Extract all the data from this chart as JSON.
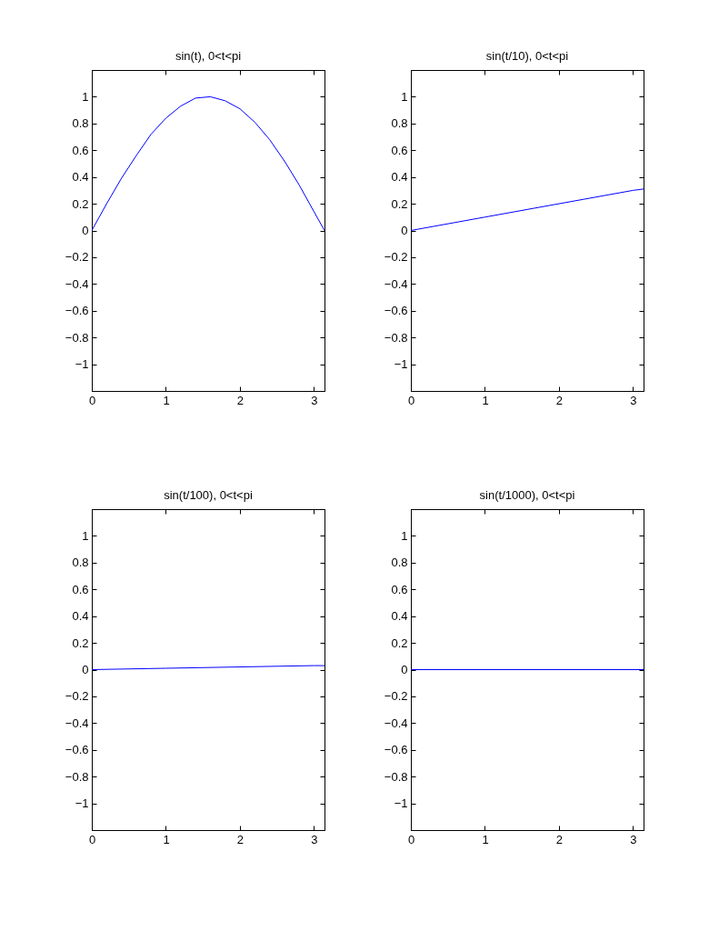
{
  "chart_data": [
    {
      "type": "line",
      "title": "sin(t), 0<t<pi",
      "x": [
        0,
        0.2,
        0.4,
        0.6,
        0.8,
        1.0,
        1.2,
        1.4,
        1.6,
        1.8,
        2.0,
        2.2,
        2.4,
        2.6,
        2.8,
        3.0,
        3.1416
      ],
      "series": [
        {
          "color": "#0000ff",
          "values": [
            0,
            0.2,
            0.39,
            0.56,
            0.72,
            0.84,
            0.93,
            0.99,
            1.0,
            0.97,
            0.91,
            0.81,
            0.68,
            0.52,
            0.34,
            0.14,
            0
          ]
        }
      ],
      "xlim": [
        0,
        3.1416
      ],
      "ylim": [
        -1.2,
        1.2
      ],
      "xticks": [
        0,
        1,
        2,
        3
      ],
      "yticks": [
        -1,
        -0.8,
        -0.6,
        -0.4,
        -0.2,
        0,
        0.2,
        0.4,
        0.6,
        0.8,
        1
      ]
    },
    {
      "type": "line",
      "title": "sin(t/10), 0<t<pi",
      "x": [
        0,
        1,
        2,
        3,
        3.1416
      ],
      "series": [
        {
          "color": "#0000ff",
          "values": [
            0,
            0.1,
            0.2,
            0.3,
            0.31
          ]
        }
      ],
      "xlim": [
        0,
        3.1416
      ],
      "ylim": [
        -1.2,
        1.2
      ],
      "xticks": [
        0,
        1,
        2,
        3
      ],
      "yticks": [
        -1,
        -0.8,
        -0.6,
        -0.4,
        -0.2,
        0,
        0.2,
        0.4,
        0.6,
        0.8,
        1
      ]
    },
    {
      "type": "line",
      "title": "sin(t/100), 0<t<pi",
      "x": [
        0,
        1,
        2,
        3,
        3.1416
      ],
      "series": [
        {
          "color": "#0000ff",
          "values": [
            0,
            0.01,
            0.02,
            0.03,
            0.03
          ]
        }
      ],
      "xlim": [
        0,
        3.1416
      ],
      "ylim": [
        -1.2,
        1.2
      ],
      "xticks": [
        0,
        1,
        2,
        3
      ],
      "yticks": [
        -1,
        -0.8,
        -0.6,
        -0.4,
        -0.2,
        0,
        0.2,
        0.4,
        0.6,
        0.8,
        1
      ]
    },
    {
      "type": "line",
      "title": "sin(t/1000), 0<t<pi",
      "x": [
        0,
        3.1416
      ],
      "series": [
        {
          "color": "#0000ff",
          "values": [
            0,
            0
          ]
        }
      ],
      "xlim": [
        0,
        3.1416
      ],
      "ylim": [
        -1.2,
        1.2
      ],
      "xticks": [
        0,
        1,
        2,
        3
      ],
      "yticks": [
        -1,
        -0.8,
        -0.6,
        -0.4,
        -0.2,
        0,
        0.2,
        0.4,
        0.6,
        0.8,
        1
      ]
    }
  ]
}
